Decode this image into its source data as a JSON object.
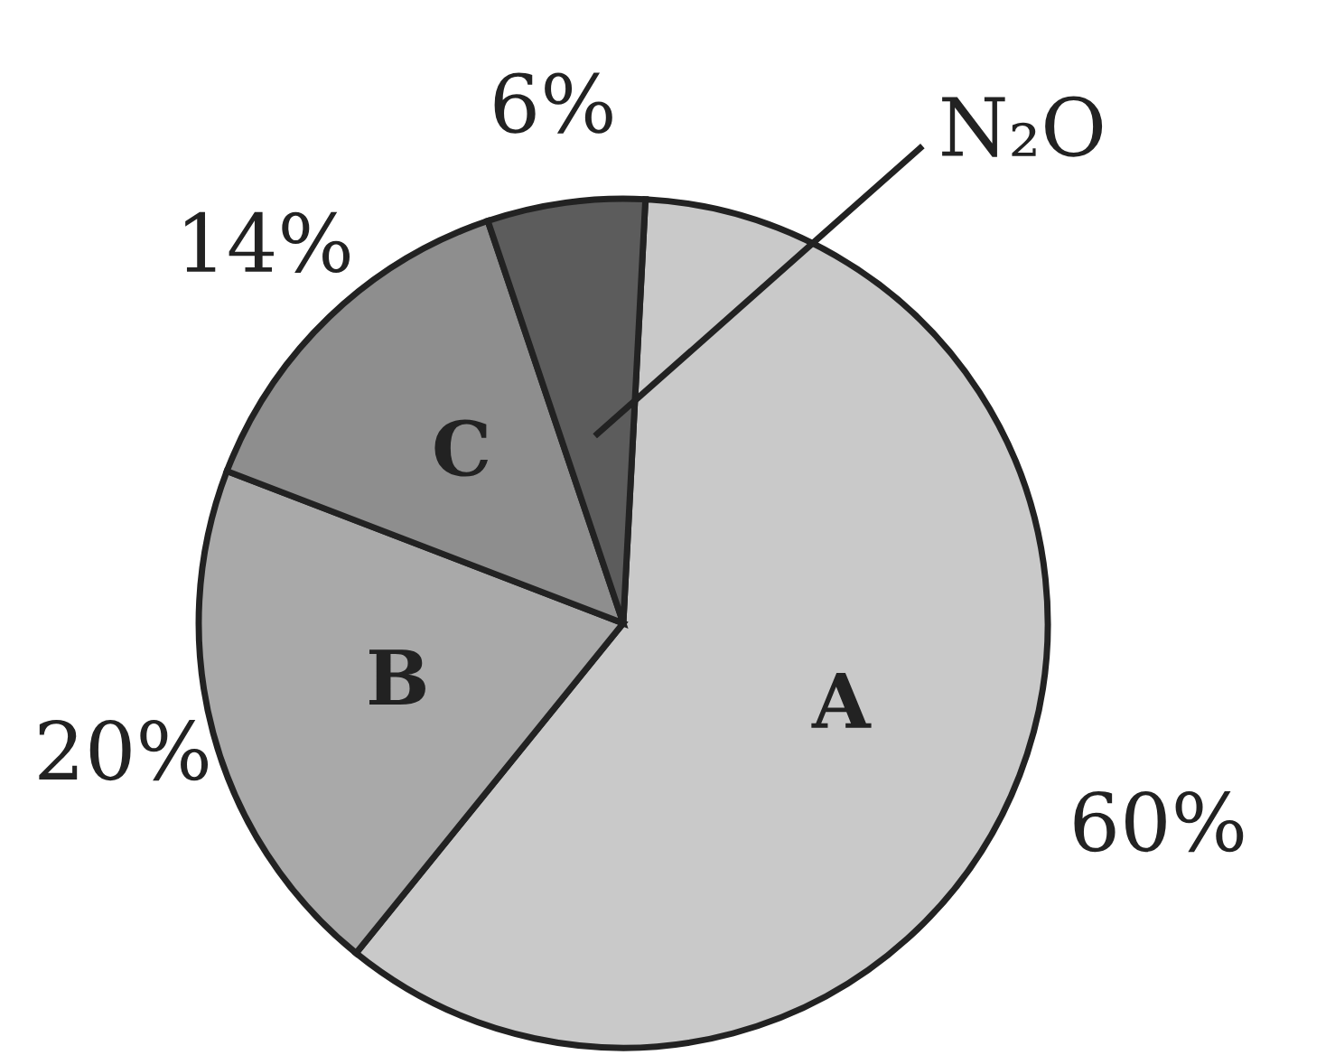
{
  "chart_data": {
    "type": "pie",
    "categories": [
      "A",
      "B",
      "C",
      "N₂O"
    ],
    "values": [
      60,
      20,
      14,
      6
    ],
    "colors": [
      "#c9c9c9",
      "#a9a9a9",
      "#8e8e8e",
      "#5c5c5c"
    ],
    "value_labels": [
      "60%",
      "20%",
      "14%",
      "6%"
    ],
    "legend": false
  }
}
